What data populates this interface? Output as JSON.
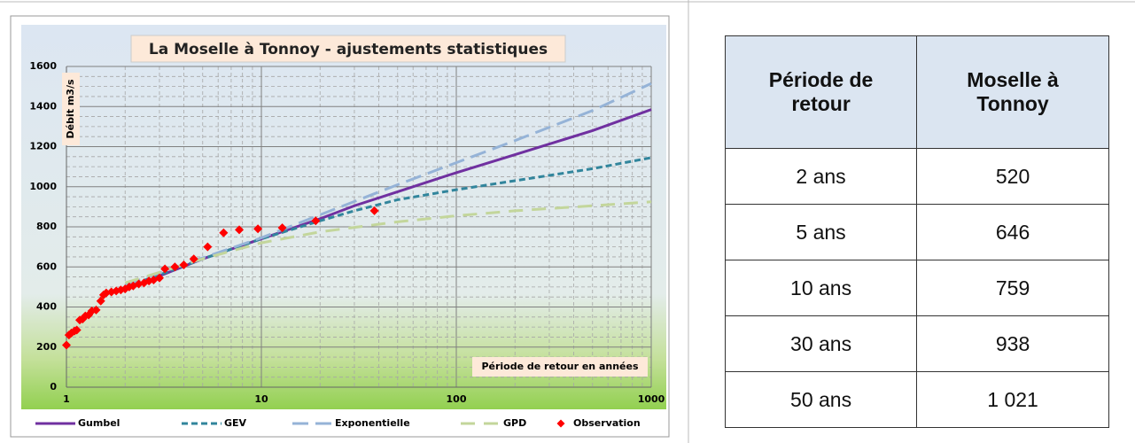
{
  "chart_data": {
    "type": "line",
    "title": "La Moselle à Tonnoy - ajustements statistiques",
    "ylabel": "Débit m3/s",
    "xlabel": "Période de retour en années",
    "xlog": true,
    "grid": true,
    "xlim": [
      1,
      1000
    ],
    "xticks": [
      1,
      10,
      100,
      1000
    ],
    "xminorticks": [
      2,
      3,
      4,
      5,
      6,
      7,
      8,
      9,
      20,
      30,
      40,
      50,
      60,
      70,
      80,
      90,
      200,
      300,
      400,
      500,
      600,
      700,
      800,
      900
    ],
    "ylim": [
      0,
      1600
    ],
    "yticks": [
      0,
      200,
      400,
      600,
      800,
      1000,
      1200,
      1400,
      1600
    ],
    "yminorticks": [
      50,
      100,
      150,
      250,
      300,
      350,
      450,
      500,
      550,
      650,
      700,
      750,
      850,
      900,
      950,
      1050,
      1100,
      1150,
      1250,
      1300,
      1350,
      1450,
      1500,
      1550
    ],
    "series": [
      {
        "name": "Gumbel",
        "color": "#7030a0",
        "dash": "none",
        "x": [
          3,
          5,
          10,
          20,
          30,
          50,
          100,
          200,
          500,
          1000
        ],
        "values": [
          555,
          640,
          740,
          840,
          905,
          975,
          1070,
          1160,
          1280,
          1385
        ]
      },
      {
        "name": "GEV",
        "color": "#31859c",
        "dash": "7 4",
        "x": [
          2,
          3,
          5,
          10,
          20,
          30,
          50,
          100,
          200,
          500,
          1000
        ],
        "values": [
          500,
          560,
          640,
          740,
          830,
          880,
          935,
          985,
          1030,
          1090,
          1145
        ]
      },
      {
        "name": "Exponentielle",
        "color": "#95b3d7",
        "dash": "18 8",
        "x": [
          2,
          5,
          10,
          20,
          50,
          100,
          200,
          500,
          1000
        ],
        "values": [
          510,
          645,
          745,
          860,
          1010,
          1120,
          1230,
          1380,
          1515
        ]
      },
      {
        "name": "GPD",
        "color": "#c3d69b",
        "dash": "16 10",
        "x": [
          2,
          5,
          10,
          20,
          50,
          100,
          200,
          500,
          1000
        ],
        "values": [
          520,
          640,
          720,
          775,
          825,
          855,
          880,
          905,
          925
        ]
      },
      {
        "name": "Observation",
        "color": "#ff0000",
        "marker": "diamond",
        "x": [
          1.0,
          1.03,
          1.06,
          1.1,
          1.13,
          1.17,
          1.21,
          1.25,
          1.3,
          1.35,
          1.42,
          1.5,
          1.55,
          1.6,
          1.7,
          1.8,
          1.9,
          2.0,
          2.1,
          2.2,
          2.35,
          2.5,
          2.65,
          2.8,
          3.0,
          3.2,
          3.6,
          4.0,
          4.5,
          5.3,
          6.4,
          7.7,
          9.6,
          12.8,
          19,
          38
        ],
        "values": [
          210,
          260,
          270,
          280,
          285,
          335,
          340,
          355,
          360,
          380,
          385,
          430,
          460,
          470,
          475,
          480,
          485,
          490,
          500,
          505,
          515,
          520,
          530,
          535,
          545,
          590,
          600,
          610,
          640,
          700,
          770,
          785,
          790,
          795,
          830,
          880
        ]
      }
    ]
  },
  "table": {
    "header": [
      "Période de retour",
      "Moselle à Tonnoy"
    ],
    "rows": [
      [
        "2 ans",
        "520"
      ],
      [
        "5 ans",
        "646"
      ],
      [
        "10 ans",
        "759"
      ],
      [
        "30 ans",
        "938"
      ],
      [
        "50 ans",
        "1 021"
      ]
    ]
  }
}
